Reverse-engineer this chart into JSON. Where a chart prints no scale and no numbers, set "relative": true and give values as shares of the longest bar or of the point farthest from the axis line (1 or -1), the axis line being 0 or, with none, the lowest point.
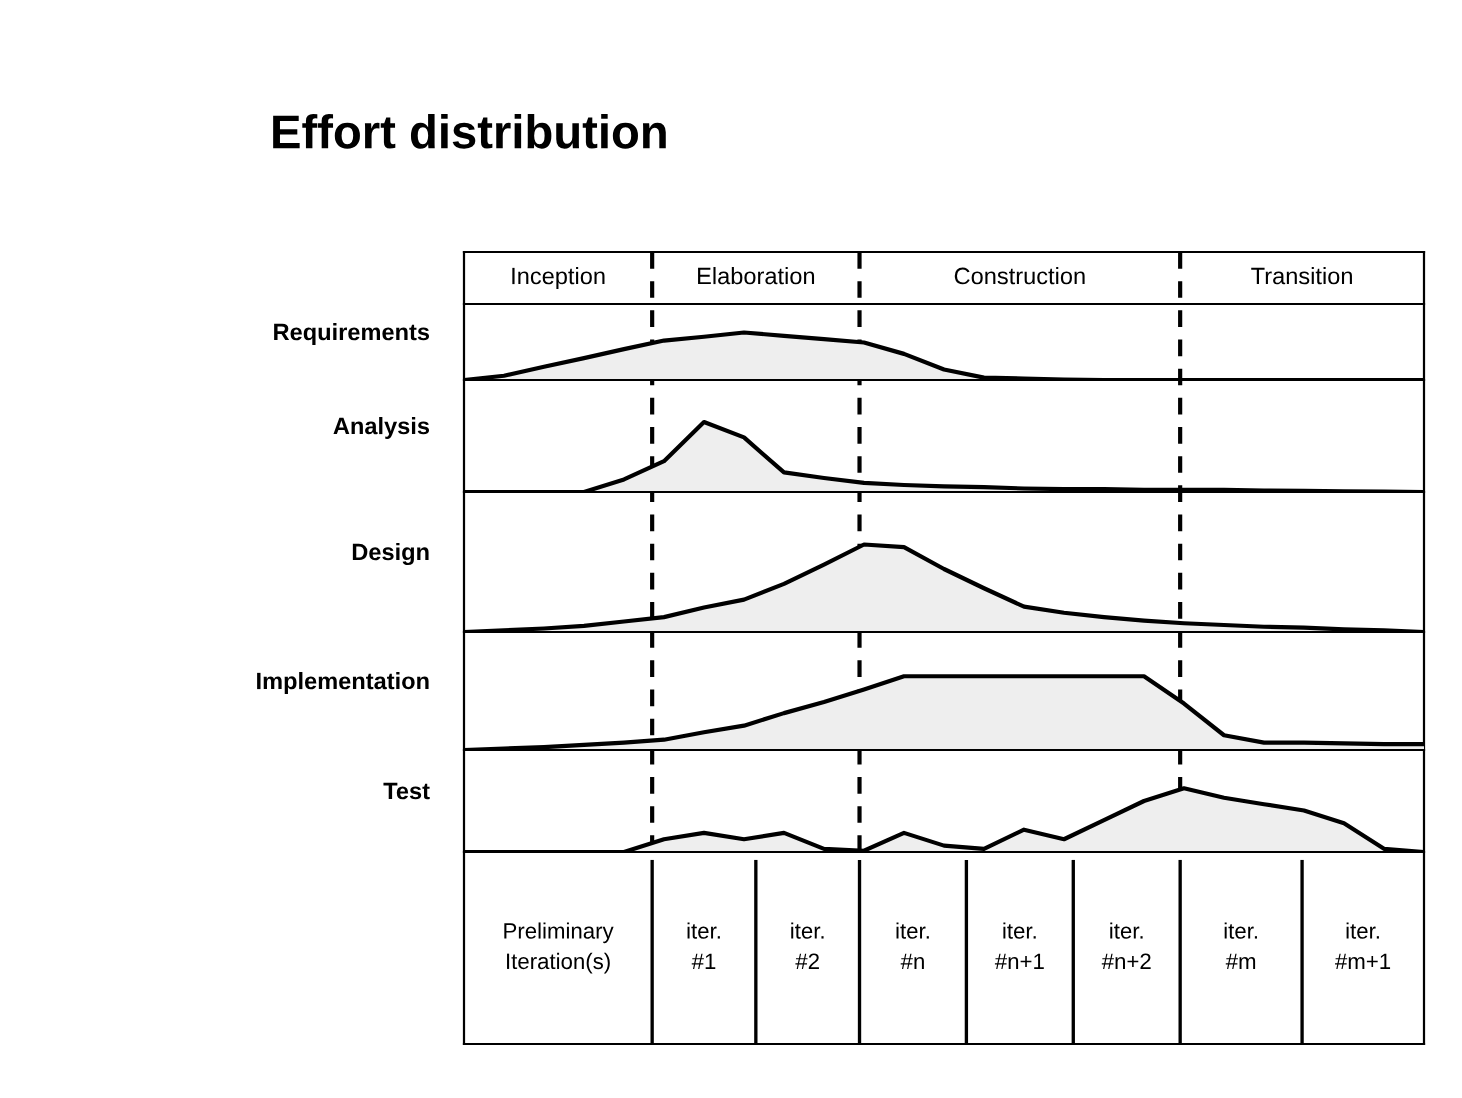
{
  "chart_data": [
    {
      "type": "area",
      "title": "Effort distribution",
      "ylabel": "Requirements",
      "relative": true,
      "color": "#eeeeee",
      "annotations": [
        "Inception",
        "Elaboration",
        "Construction",
        "Transition"
      ],
      "categories": [
        null,
        null,
        null,
        null,
        null,
        null,
        null,
        null,
        null,
        null,
        null,
        null,
        null,
        null,
        null,
        null,
        null,
        null,
        null,
        null,
        null,
        null,
        null,
        null,
        null
      ],
      "values": [
        0,
        0.09,
        0.28,
        0.46,
        0.65,
        0.83,
        0.91,
        1,
        0.93,
        0.86,
        0.79,
        0.55,
        0.22,
        0.05,
        0.03,
        0.01,
        0,
        0,
        0,
        0,
        0,
        0,
        0,
        0,
        0
      ]
    },
    {
      "type": "area",
      "ylabel": "Analysis",
      "relative": true,
      "color": "#eeeeee",
      "categories": [
        null,
        null,
        null,
        null,
        null,
        null,
        null,
        null,
        null,
        null,
        null,
        null,
        null,
        null,
        null,
        null,
        null,
        null,
        null,
        null,
        null,
        null,
        null,
        null,
        null
      ],
      "values": [
        0,
        0,
        0,
        0,
        0.18,
        0.44,
        1,
        0.78,
        0.28,
        0.2,
        0.13,
        0.1,
        0.08,
        0.07,
        0.05,
        0.04,
        0.04,
        0.03,
        0.03,
        0.03,
        0.02,
        0.015,
        0.01,
        0.005,
        0
      ]
    },
    {
      "type": "area",
      "ylabel": "Design",
      "relative": true,
      "color": "#eeeeee",
      "categories": [
        null,
        null,
        null,
        null,
        null,
        null,
        null,
        null,
        null,
        null,
        null,
        null,
        null,
        null,
        null,
        null,
        null,
        null,
        null,
        null,
        null,
        null,
        null,
        null,
        null
      ],
      "values": [
        0,
        0.02,
        0.04,
        0.07,
        0.12,
        0.17,
        0.28,
        0.37,
        0.55,
        0.77,
        1,
        0.97,
        0.72,
        0.5,
        0.29,
        0.22,
        0.17,
        0.13,
        0.1,
        0.08,
        0.06,
        0.05,
        0.03,
        0.02,
        0
      ]
    },
    {
      "type": "area",
      "ylabel": "Implementation",
      "relative": true,
      "color": "#eeeeee",
      "categories": [
        null,
        null,
        null,
        null,
        null,
        null,
        null,
        null,
        null,
        null,
        null,
        null,
        null,
        null,
        null,
        null,
        null,
        null,
        null,
        null,
        null,
        null,
        null,
        null,
        null
      ],
      "values": [
        0,
        0.02,
        0.04,
        0.07,
        0.1,
        0.14,
        0.24,
        0.33,
        0.5,
        0.65,
        0.82,
        1,
        1,
        1,
        1,
        1,
        1,
        1,
        0.63,
        0.2,
        0.1,
        0.1,
        0.09,
        0.08,
        0.08
      ]
    },
    {
      "type": "area",
      "ylabel": "Test",
      "relative": true,
      "color": "#eeeeee",
      "annotations": [
        "Preliminary Iteration(s)",
        "iter. #1",
        "iter. #2",
        "iter. #n",
        "iter. #n+1",
        "iter. #n+2",
        "iter. #m",
        "iter. #m+1"
      ],
      "categories": [
        null,
        null,
        null,
        null,
        null,
        null,
        null,
        null,
        null,
        null,
        null,
        null,
        null,
        null,
        null,
        null,
        null,
        null,
        null,
        null,
        null,
        null,
        null,
        null,
        null
      ],
      "values": [
        0,
        0,
        0,
        0,
        0,
        0.2,
        0.3,
        0.2,
        0.3,
        0.05,
        0.02,
        0.3,
        0.1,
        0.05,
        0.35,
        0.2,
        0.5,
        0.8,
        1,
        0.85,
        0.75,
        0.65,
        0.45,
        0.05,
        0
      ]
    }
  ]
}
